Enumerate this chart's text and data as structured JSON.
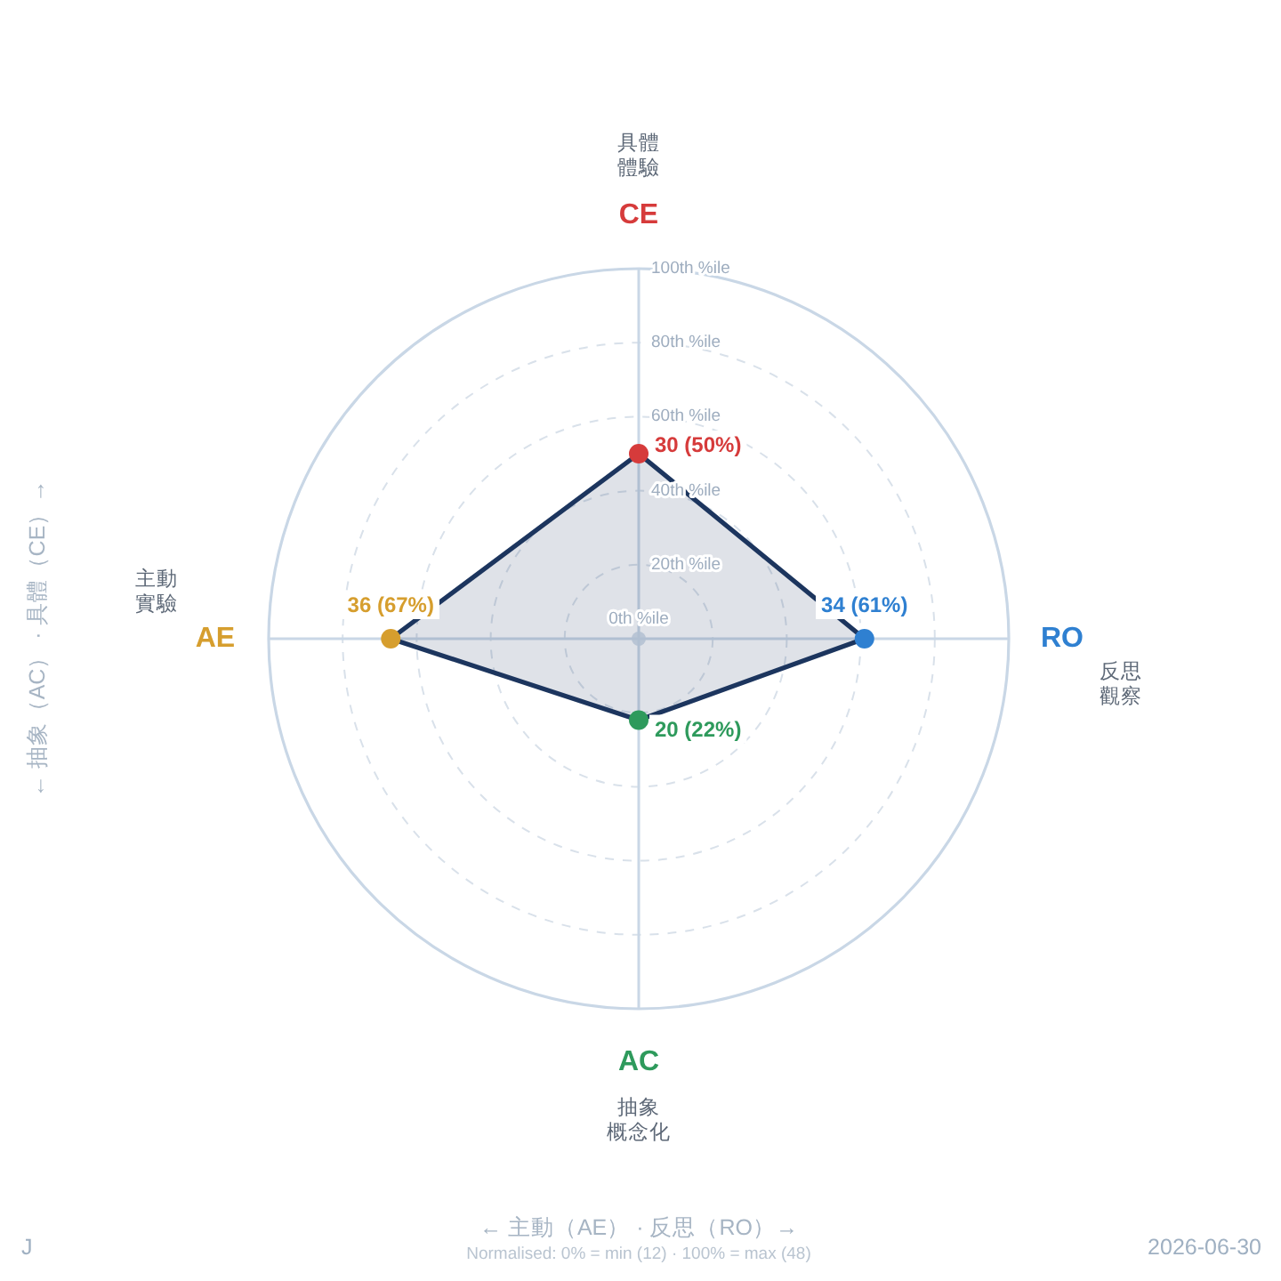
{
  "chart_data": {
    "type": "radar",
    "categories": [
      "CE",
      "RO",
      "AC",
      "AE"
    ],
    "series": [
      {
        "color": "#1c355e",
        "colors": [
          "#d63b3b",
          "#2f80d1",
          "#2e9a5c",
          "#d69e2e"
        ],
        "values": [
          50,
          61,
          22,
          67
        ],
        "value_labels": [
          "30 (50%)",
          "34 (61%)",
          "20 (22%)",
          "36 (67%)"
        ]
      }
    ],
    "ylim": [
      0,
      100
    ],
    "yticks": [
      {
        "value": 0,
        "label": "0th %ile"
      },
      {
        "value": 20,
        "label": "20th %ile"
      },
      {
        "value": 40,
        "label": "40th %ile"
      },
      {
        "value": 60,
        "label": "60th %ile"
      },
      {
        "value": 80,
        "label": "80th %ile"
      },
      {
        "value": 100,
        "label": "100th %ile"
      }
    ],
    "grid": true,
    "marker": "circle",
    "xlabel": "← 主動（AE） · 反思（RO）→",
    "ylabel": "← 抽象（AC） · 具體（CE）→",
    "annotations": [
      "具體體驗",
      "反思觀察",
      "抽象概念化",
      "主動實驗",
      "Normalised: 0% = min (12) · 100% = max (48)",
      "J",
      "2026-06-30"
    ]
  }
}
